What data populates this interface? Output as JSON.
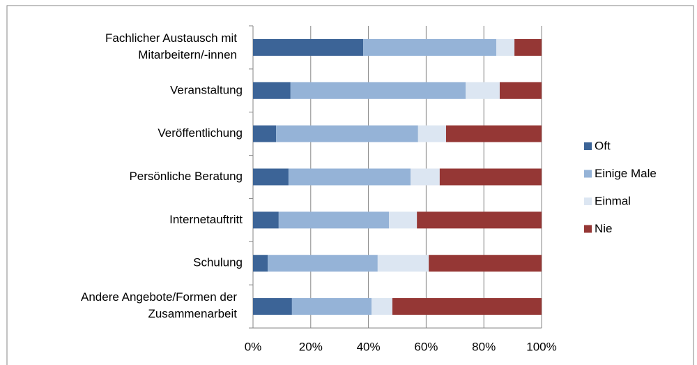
{
  "chart_data": {
    "type": "stacked-bar-horizontal",
    "categories": [
      "Fachlicher Austausch mit\nMitarbeitern/-innen",
      "Veranstaltung",
      "Veröffentlichung",
      "Persönliche Beratung",
      "Internetauftritt",
      "Schulung",
      "Andere Angebote/Formen der\nZusammenarbeit"
    ],
    "series": [
      {
        "name": "Oft",
        "color": "#3c6497",
        "values": [
          38.2,
          13.0,
          8.0,
          12.3,
          8.9,
          5.1,
          13.5
        ]
      },
      {
        "name": "Einige Male",
        "color": "#95b3d7",
        "values": [
          46.1,
          60.7,
          49.2,
          42.3,
          38.2,
          38.1,
          27.6
        ]
      },
      {
        "name": "Einmal",
        "color": "#dce6f2",
        "values": [
          6.3,
          11.8,
          9.7,
          10.1,
          9.7,
          17.7,
          7.2
        ]
      },
      {
        "name": "Nie",
        "color": "#953735",
        "values": [
          9.4,
          14.5,
          33.1,
          35.3,
          43.2,
          39.1,
          51.7
        ]
      }
    ],
    "xlim": [
      0,
      100
    ],
    "xticks": [
      {
        "value": 0,
        "label": "0%"
      },
      {
        "value": 20,
        "label": "20%"
      },
      {
        "value": 40,
        "label": "40%"
      },
      {
        "value": 60,
        "label": "60%"
      },
      {
        "value": 80,
        "label": "80%"
      },
      {
        "value": 100,
        "label": "100%"
      }
    ],
    "grid": true,
    "legend": "right"
  }
}
